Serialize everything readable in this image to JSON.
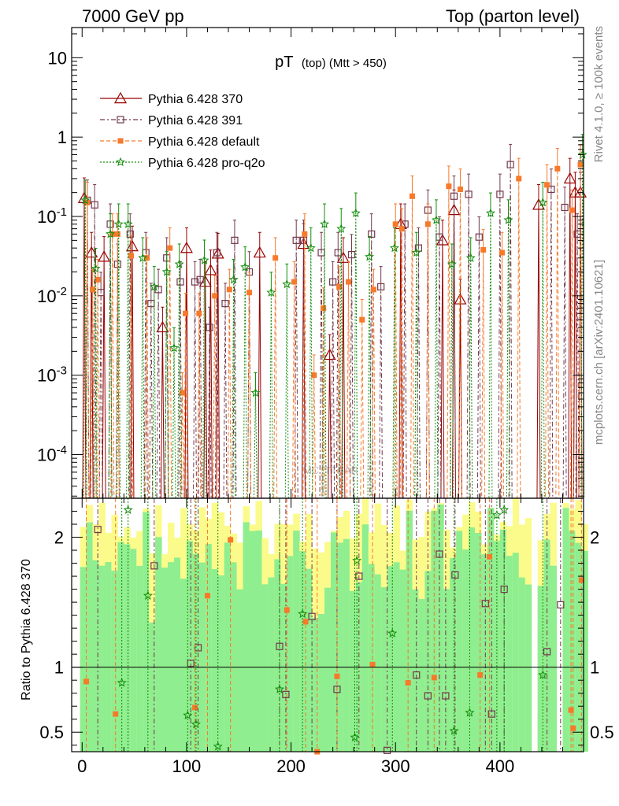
{
  "header": {
    "left": "7000 GeV pp",
    "right": "Top (parton level)"
  },
  "side_labels": {
    "rivet": "Rivet 4.1.0, ≥ 100k events",
    "mcplots": "mcplots.cern.ch [arXiv:2401.10621]"
  },
  "watermark": "MC_TTBAR",
  "chart_data": {
    "type": "line",
    "title_main": "pT",
    "title_sub": "(top) (Mtt > 450)",
    "xlim": [
      -10,
      480
    ],
    "main_ylim_log10": [
      -4.55,
      1.38
    ],
    "ratio_ylim": [
      0.35,
      2.3
    ],
    "ratio_ylabel": "Ratio to Pythia 6.428 370",
    "x_ticks": [
      "0",
      "100",
      "200",
      "300",
      "400"
    ],
    "main_y_ticks": [
      "10",
      "1",
      "10^-1",
      "10^-2",
      "10^-3",
      "10^-4"
    ],
    "ratio_y_ticks": [
      "0.5",
      "1",
      "2"
    ],
    "colors": {
      "p370": "#990000",
      "p391": "#73394d",
      "default": "#f7792a",
      "proq2o": "#128c0a",
      "band_yellow": "#fbfb8c",
      "band_green": "#8fee8f"
    },
    "legend": [
      {
        "label": "Pythia 6.428 370",
        "key": "p370"
      },
      {
        "label": "Pythia 6.428 391",
        "key": "p391"
      },
      {
        "label": "Pythia 6.428 default",
        "key": "default"
      },
      {
        "label": "Pythia 6.428 pro-q2o",
        "key": "proq2o"
      }
    ],
    "series": [
      {
        "name": "Pythia 6.428 370",
        "key": "p370",
        "marker": "triangle",
        "points": [
          [
            2,
            0.17
          ],
          [
            9,
            0.035
          ],
          [
            21,
            0.031
          ],
          [
            48,
            0.042
          ],
          [
            77,
            0.004
          ],
          [
            100,
            0.04
          ],
          [
            118,
            0.015
          ],
          [
            123,
            0.021
          ],
          [
            130,
            0.034
          ],
          [
            170,
            0.035
          ],
          [
            212,
            0.045
          ],
          [
            237,
            0.0018
          ],
          [
            250,
            0.03
          ],
          [
            305,
            0.08
          ],
          [
            345,
            0.05
          ],
          [
            356,
            0.12
          ],
          [
            362,
            0.009
          ],
          [
            437,
            0.14
          ],
          [
            467,
            0.3
          ],
          [
            472,
            0.2
          ],
          [
            477,
            0.2
          ]
        ]
      },
      {
        "name": "Pythia 6.428 391",
        "key": "p391",
        "marker": "square",
        "points": [
          [
            5,
            0.16
          ],
          [
            12,
            0.14
          ],
          [
            18,
            0.011
          ],
          [
            27,
            0.08
          ],
          [
            34,
            0.025
          ],
          [
            46,
            0.06
          ],
          [
            61,
            0.035
          ],
          [
            66,
            0.008
          ],
          [
            73,
            0.012
          ],
          [
            81,
            0.03
          ],
          [
            94,
            0.015
          ],
          [
            108,
            0.015
          ],
          [
            113,
            0.016
          ],
          [
            122,
            0.004
          ],
          [
            129,
            0.035
          ],
          [
            137,
            0.008
          ],
          [
            146,
            0.05
          ],
          [
            160,
            0.02
          ],
          [
            205,
            0.05
          ],
          [
            212,
            0.05
          ],
          [
            229,
            0.035
          ],
          [
            240,
            0.015
          ],
          [
            245,
            0.035
          ],
          [
            258,
            0.033
          ],
          [
            277,
            0.06
          ],
          [
            286,
            0.013
          ],
          [
            309,
            0.08
          ],
          [
            322,
            0.04
          ],
          [
            331,
            0.12
          ],
          [
            342,
            0.055
          ],
          [
            356,
            0.18
          ],
          [
            370,
            0.19
          ],
          [
            380,
            0.055
          ],
          [
            400,
            0.19
          ],
          [
            410,
            0.45
          ],
          [
            449,
            0.22
          ],
          [
            462,
            0.13
          ],
          [
            474,
            0.06
          ]
        ]
      },
      {
        "name": "Pythia 6.428 default",
        "key": "default",
        "marker": "square-filled",
        "points": [
          [
            5,
            0.15
          ],
          [
            10,
            0.012
          ],
          [
            15,
            0.016
          ],
          [
            29,
            0.06
          ],
          [
            34,
            0.06
          ],
          [
            47,
            0.032
          ],
          [
            62,
            0.03
          ],
          [
            84,
            0.04
          ],
          [
            96,
            0.0006
          ],
          [
            99,
            0.006
          ],
          [
            112,
            0.006
          ],
          [
            127,
            0.01
          ],
          [
            141,
            0.012
          ],
          [
            160,
            0.011
          ],
          [
            185,
            0.03
          ],
          [
            203,
            0.015
          ],
          [
            213,
            0.06
          ],
          [
            222,
            0.001
          ],
          [
            231,
            0.007
          ],
          [
            246,
            0.013
          ],
          [
            255,
            0.015
          ],
          [
            268,
            0.005
          ],
          [
            279,
            0.012
          ],
          [
            300,
            0.08
          ],
          [
            306,
            0.07
          ],
          [
            316,
            0.18
          ],
          [
            331,
            0.08
          ],
          [
            351,
            0.24
          ],
          [
            362,
            0.22
          ],
          [
            384,
            0.038
          ],
          [
            402,
            0.035
          ],
          [
            418,
            0.3
          ],
          [
            445,
            0.25
          ],
          [
            455,
            0.4
          ],
          [
            469,
            0.12
          ],
          [
            477,
            0.45
          ]
        ]
      },
      {
        "name": "Pythia 6.428 pro-q2o",
        "key": "proq2o",
        "marker": "star",
        "points": [
          [
            3,
            0.16
          ],
          [
            13,
            0.022
          ],
          [
            27,
            0.06
          ],
          [
            35,
            0.08
          ],
          [
            44,
            0.08
          ],
          [
            58,
            0.03
          ],
          [
            69,
            0.013
          ],
          [
            81,
            0.02
          ],
          [
            88,
            0.0022
          ],
          [
            93,
            0.025
          ],
          [
            117,
            0.028
          ],
          [
            145,
            0.016
          ],
          [
            156,
            0.023
          ],
          [
            166,
            0.0006
          ],
          [
            181,
            0.011
          ],
          [
            196,
            0.014
          ],
          [
            219,
            0.04
          ],
          [
            232,
            0.08
          ],
          [
            248,
            0.07
          ],
          [
            262,
            0.11
          ],
          [
            275,
            0.031
          ],
          [
            299,
            0.04
          ],
          [
            320,
            0.035
          ],
          [
            339,
            0.09
          ],
          [
            354,
            0.025
          ],
          [
            372,
            0.03
          ],
          [
            391,
            0.11
          ],
          [
            408,
            0.09
          ],
          [
            441,
            0.15
          ],
          [
            479,
            0.6
          ]
        ]
      }
    ],
    "ratio_points": [
      {
        "key": "p391",
        "points": [
          [
            15,
            2.06
          ],
          [
            69,
            1.78
          ],
          [
            111,
            1.15
          ],
          [
            104,
            1.03
          ],
          [
            189,
            1.16
          ],
          [
            195,
            0.79
          ],
          [
            220,
            1.39
          ],
          [
            244,
            0.83
          ],
          [
            265,
            1.7
          ],
          [
            292,
            0.36
          ],
          [
            320,
            0.94
          ],
          [
            331,
            0.78
          ],
          [
            348,
            0.78
          ],
          [
            357,
            1.71
          ],
          [
            386,
            1.49
          ],
          [
            392,
            0.64
          ],
          [
            404,
            1.6
          ],
          [
            445,
            1.12
          ],
          [
            458,
            1.48
          ],
          [
            342,
            1.87
          ]
        ]
      },
      {
        "key": "default",
        "points": [
          [
            4,
            0.89
          ],
          [
            32,
            0.64
          ],
          [
            108,
            0.69
          ],
          [
            120,
            1.55
          ],
          [
            142,
            1.98
          ],
          [
            196,
            1.44
          ],
          [
            214,
            1.35
          ],
          [
            225,
            0.35
          ],
          [
            244,
            0.93
          ],
          [
            278,
            1.02
          ],
          [
            312,
            0.88
          ],
          [
            337,
            0.92
          ],
          [
            381,
            0.94
          ],
          [
            390,
            1.85
          ],
          [
            468,
            0.67
          ],
          [
            470,
            0.53
          ],
          [
            478,
            1.67
          ]
        ]
      },
      {
        "key": "proq2o",
        "points": [
          [
            38,
            0.88
          ],
          [
            44,
            2.21
          ],
          [
            63,
            1.55
          ],
          [
            101,
            0.63
          ],
          [
            109,
            0.56
          ],
          [
            130,
            0.39
          ],
          [
            189,
            0.83
          ],
          [
            211,
            1.41
          ],
          [
            261,
            0.46
          ],
          [
            263,
            1.82
          ],
          [
            297,
            1.26
          ],
          [
            356,
            0.51
          ],
          [
            371,
            0.65
          ],
          [
            397,
            2.17
          ],
          [
            404,
            2.21
          ],
          [
            441,
            0.94
          ]
        ]
      }
    ]
  }
}
